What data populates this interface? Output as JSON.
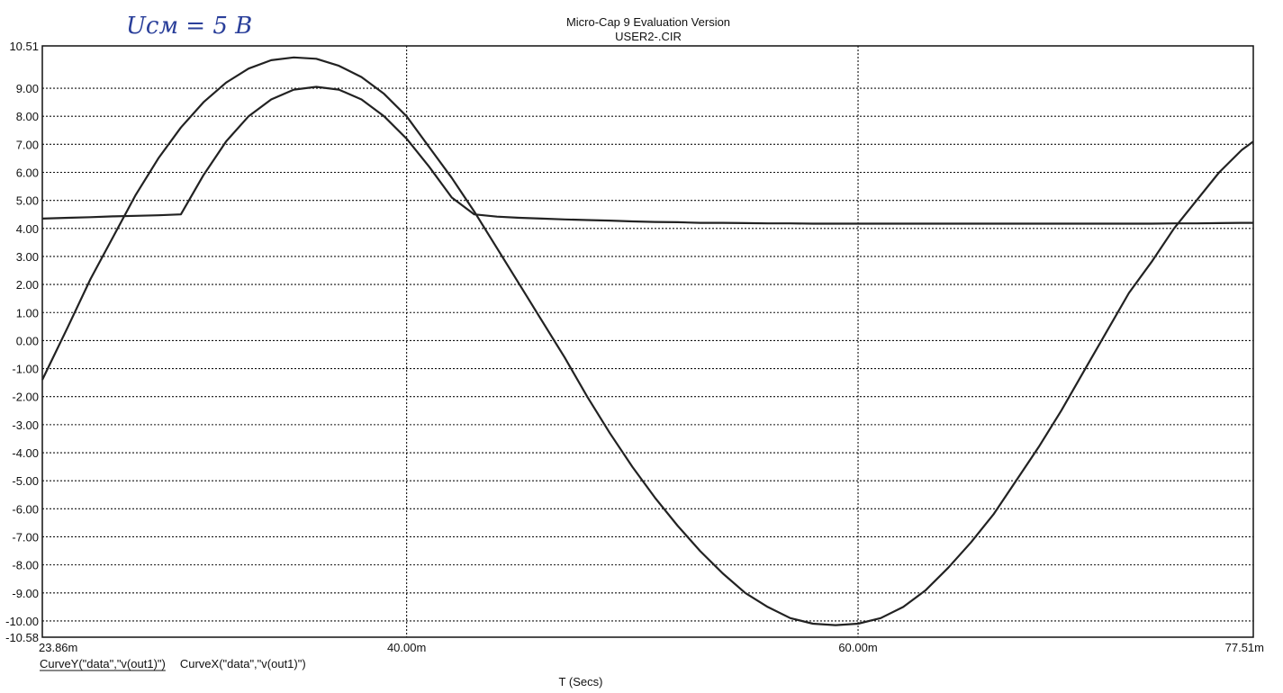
{
  "chart_data": {
    "type": "line",
    "title": "Micro-Cap 9 Evaluation Version",
    "subtitle": "USER2-.CIR",
    "annotation": "Uсм = 5 В",
    "xlabel": "T (Secs)",
    "ylabel": "",
    "xlim": [
      23.86,
      77.51
    ],
    "ylim": [
      -10.58,
      10.51
    ],
    "x_unit": "ms",
    "grid": true,
    "x_ticks": [
      {
        "value": 23.86,
        "label": "23.86m"
      },
      {
        "value": 40.0,
        "label": "40.00m"
      },
      {
        "value": 60.0,
        "label": "60.00m"
      },
      {
        "value": 77.51,
        "label": "77.51m"
      }
    ],
    "y_ticks": [
      {
        "value": 10.51,
        "label": "10.51"
      },
      {
        "value": 9,
        "label": "9.00"
      },
      {
        "value": 8,
        "label": "8.00"
      },
      {
        "value": 7,
        "label": "7.00"
      },
      {
        "value": 6,
        "label": "6.00"
      },
      {
        "value": 5,
        "label": "5.00"
      },
      {
        "value": 4,
        "label": "4.00"
      },
      {
        "value": 3,
        "label": "3.00"
      },
      {
        "value": 2,
        "label": "2.00"
      },
      {
        "value": 1,
        "label": "1.00"
      },
      {
        "value": 0,
        "label": "0.00"
      },
      {
        "value": -1,
        "label": "-1.00"
      },
      {
        "value": -2,
        "label": "-2.00"
      },
      {
        "value": -3,
        "label": "-3.00"
      },
      {
        "value": -4,
        "label": "-4.00"
      },
      {
        "value": -5,
        "label": "-5.00"
      },
      {
        "value": -6,
        "label": "-6.00"
      },
      {
        "value": -7,
        "label": "-7.00"
      },
      {
        "value": -8,
        "label": "-8.00"
      },
      {
        "value": -9,
        "label": "-9.00"
      },
      {
        "value": -10,
        "label": "-10.00"
      },
      {
        "value": -10.58,
        "label": "-10.58"
      }
    ],
    "legend": [
      {
        "label": "CurveY(\"data\",\"v(out1)\")",
        "underlined": true
      },
      {
        "label": "CurveX(\"data\",\"v(out1)\")",
        "underlined": false
      }
    ],
    "series": [
      {
        "x": [
          23.86,
          25,
          26,
          27,
          28,
          29,
          30,
          31,
          32,
          33,
          34,
          35,
          36,
          37,
          38,
          39,
          40,
          41,
          42,
          43,
          44,
          45,
          46,
          47,
          48,
          49,
          50,
          51,
          52,
          53,
          54,
          55,
          56,
          57,
          58,
          59,
          60,
          61,
          62,
          63,
          64,
          65,
          66,
          67,
          68,
          69,
          70,
          71,
          72,
          73,
          74,
          75,
          76,
          77,
          77.51
        ],
        "y": [
          -1.4,
          0.5,
          2.2,
          3.7,
          5.2,
          6.5,
          7.6,
          8.5,
          9.2,
          9.7,
          10.0,
          10.1,
          10.05,
          9.8,
          9.4,
          8.8,
          8.0,
          6.9,
          5.8,
          4.6,
          3.3,
          2.0,
          0.7,
          -0.6,
          -2.0,
          -3.3,
          -4.5,
          -5.6,
          -6.6,
          -7.5,
          -8.3,
          -9.0,
          -9.5,
          -9.9,
          -10.1,
          -10.15,
          -10.1,
          -9.9,
          -9.5,
          -8.9,
          -8.1,
          -7.2,
          -6.2,
          -5.0,
          -3.8,
          -2.5,
          -1.1,
          0.3,
          1.7,
          2.8,
          4.0,
          5.0,
          6.0,
          6.8,
          7.1
        ]
      },
      {
        "x": [
          23.86,
          25,
          26,
          27,
          28,
          29,
          30,
          31,
          32,
          33,
          34,
          35,
          36,
          37,
          38,
          39,
          40,
          41,
          42,
          43,
          44,
          45,
          46,
          47,
          48,
          49,
          50,
          51,
          52,
          53,
          54,
          55,
          56,
          57,
          58,
          59,
          60,
          61,
          62,
          63,
          64,
          65,
          66,
          67,
          68,
          69,
          70,
          71,
          72,
          73,
          74,
          75,
          76,
          77,
          77.51
        ],
        "y": [
          4.35,
          4.38,
          4.4,
          4.43,
          4.45,
          4.47,
          4.5,
          5.9,
          7.1,
          8.0,
          8.6,
          8.95,
          9.05,
          8.95,
          8.6,
          8.0,
          7.2,
          6.2,
          5.1,
          4.5,
          4.42,
          4.38,
          4.35,
          4.32,
          4.3,
          4.28,
          4.25,
          4.23,
          4.22,
          4.2,
          4.2,
          4.19,
          4.18,
          4.18,
          4.17,
          4.17,
          4.17,
          4.17,
          4.17,
          4.17,
          4.17,
          4.17,
          4.17,
          4.17,
          4.17,
          4.17,
          4.17,
          4.17,
          4.17,
          4.17,
          4.18,
          4.18,
          4.19,
          4.2,
          4.2
        ]
      }
    ]
  }
}
